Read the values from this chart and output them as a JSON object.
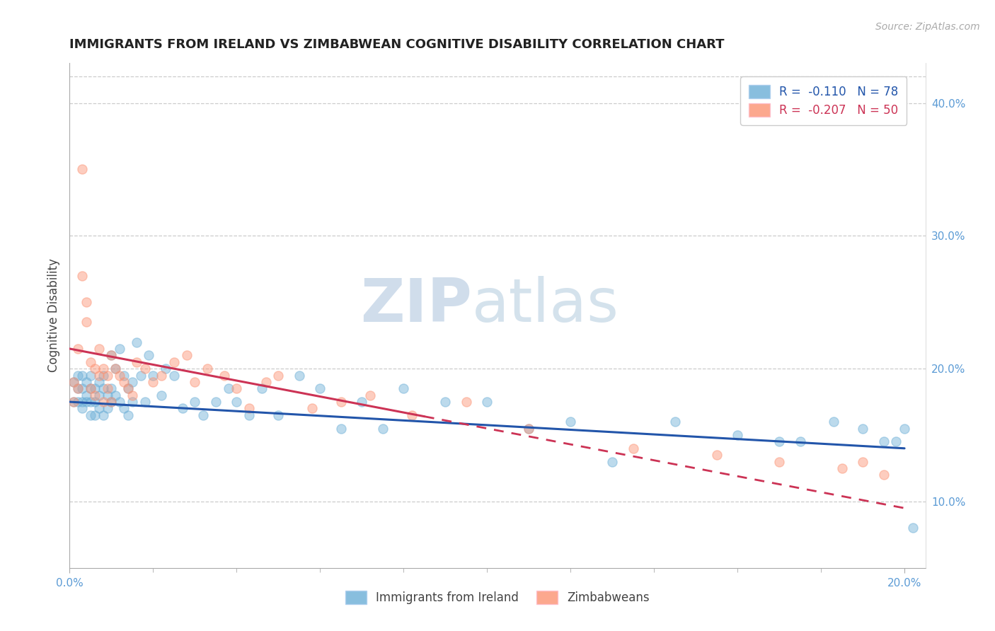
{
  "title": "IMMIGRANTS FROM IRELAND VS ZIMBABWEAN COGNITIVE DISABILITY CORRELATION CHART",
  "source": "Source: ZipAtlas.com",
  "ylabel": "Cognitive Disability",
  "right_yticks": [
    "40.0%",
    "30.0%",
    "20.0%",
    "10.0%"
  ],
  "right_ytick_vals": [
    0.4,
    0.3,
    0.2,
    0.1
  ],
  "legend_labels": [
    "Immigrants from Ireland",
    "Zimbabweans"
  ],
  "r_ireland": -0.11,
  "n_ireland": 78,
  "r_zimbabwe": -0.207,
  "n_zimbabwe": 50,
  "color_ireland": "#6baed6",
  "color_zimbabwe": "#fc9272",
  "xlim": [
    0.0,
    0.205
  ],
  "ylim": [
    0.05,
    0.43
  ],
  "ireland_trendline": [
    0.0,
    0.2,
    0.175,
    0.14
  ],
  "zimbabwe_trendline": [
    0.0,
    0.2,
    0.215,
    0.095
  ],
  "ireland_x": [
    0.001,
    0.001,
    0.002,
    0.002,
    0.002,
    0.003,
    0.003,
    0.003,
    0.003,
    0.004,
    0.004,
    0.004,
    0.005,
    0.005,
    0.005,
    0.005,
    0.006,
    0.006,
    0.006,
    0.007,
    0.007,
    0.007,
    0.008,
    0.008,
    0.008,
    0.009,
    0.009,
    0.01,
    0.01,
    0.01,
    0.011,
    0.011,
    0.012,
    0.012,
    0.013,
    0.013,
    0.014,
    0.014,
    0.015,
    0.015,
    0.016,
    0.017,
    0.018,
    0.019,
    0.02,
    0.022,
    0.023,
    0.025,
    0.027,
    0.03,
    0.032,
    0.035,
    0.038,
    0.04,
    0.043,
    0.046,
    0.05,
    0.055,
    0.06,
    0.065,
    0.07,
    0.075,
    0.08,
    0.09,
    0.1,
    0.11,
    0.12,
    0.13,
    0.145,
    0.16,
    0.17,
    0.175,
    0.183,
    0.19,
    0.195,
    0.198,
    0.2,
    0.202
  ],
  "ireland_y": [
    0.19,
    0.175,
    0.185,
    0.195,
    0.175,
    0.175,
    0.185,
    0.17,
    0.195,
    0.18,
    0.19,
    0.175,
    0.185,
    0.175,
    0.195,
    0.165,
    0.185,
    0.175,
    0.165,
    0.19,
    0.18,
    0.17,
    0.185,
    0.165,
    0.195,
    0.18,
    0.17,
    0.21,
    0.185,
    0.175,
    0.2,
    0.18,
    0.215,
    0.175,
    0.195,
    0.17,
    0.185,
    0.165,
    0.19,
    0.175,
    0.22,
    0.195,
    0.175,
    0.21,
    0.195,
    0.18,
    0.2,
    0.195,
    0.17,
    0.175,
    0.165,
    0.175,
    0.185,
    0.175,
    0.165,
    0.185,
    0.165,
    0.195,
    0.185,
    0.155,
    0.175,
    0.155,
    0.185,
    0.175,
    0.175,
    0.155,
    0.16,
    0.13,
    0.16,
    0.15,
    0.145,
    0.145,
    0.16,
    0.155,
    0.145,
    0.145,
    0.155,
    0.08
  ],
  "zimbabwe_x": [
    0.001,
    0.001,
    0.002,
    0.002,
    0.003,
    0.003,
    0.004,
    0.004,
    0.005,
    0.005,
    0.006,
    0.006,
    0.007,
    0.007,
    0.008,
    0.008,
    0.009,
    0.009,
    0.01,
    0.01,
    0.011,
    0.012,
    0.013,
    0.014,
    0.015,
    0.016,
    0.018,
    0.02,
    0.022,
    0.025,
    0.028,
    0.03,
    0.033,
    0.037,
    0.04,
    0.043,
    0.047,
    0.05,
    0.058,
    0.065,
    0.072,
    0.082,
    0.095,
    0.11,
    0.135,
    0.155,
    0.17,
    0.185,
    0.19,
    0.195
  ],
  "zimbabwe_y": [
    0.19,
    0.175,
    0.215,
    0.185,
    0.35,
    0.27,
    0.25,
    0.235,
    0.205,
    0.185,
    0.2,
    0.18,
    0.215,
    0.195,
    0.2,
    0.175,
    0.195,
    0.185,
    0.21,
    0.175,
    0.2,
    0.195,
    0.19,
    0.185,
    0.18,
    0.205,
    0.2,
    0.19,
    0.195,
    0.205,
    0.21,
    0.19,
    0.2,
    0.195,
    0.185,
    0.17,
    0.19,
    0.195,
    0.17,
    0.175,
    0.18,
    0.165,
    0.175,
    0.155,
    0.14,
    0.135,
    0.13,
    0.125,
    0.13,
    0.12
  ]
}
